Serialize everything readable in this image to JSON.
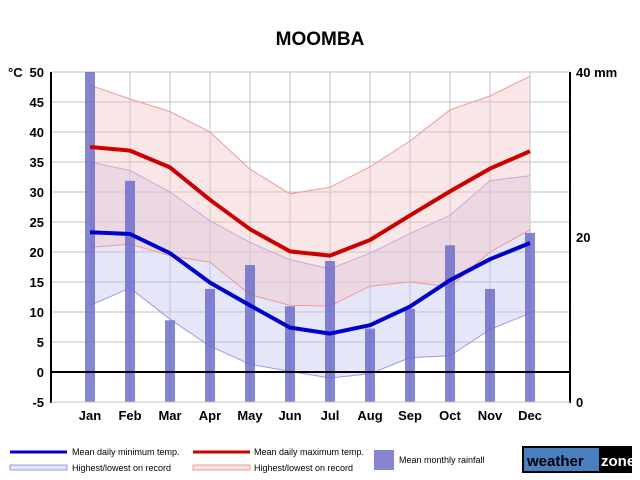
{
  "chart_data": {
    "type": "line",
    "title": "MOOMBA",
    "ylabel": "°C",
    "y2label": "mm",
    "ylim": [
      -5,
      50
    ],
    "y2lim": [
      0,
      40
    ],
    "yticks": [
      "-5",
      "0",
      "5",
      "10",
      "15",
      "20",
      "25",
      "30",
      "35",
      "40",
      "45",
      "50"
    ],
    "y2ticks": [
      "0",
      "20",
      "40 mm"
    ],
    "grid": true,
    "categories": [
      "Jan",
      "Feb",
      "Mar",
      "Apr",
      "May",
      "Jun",
      "Jul",
      "Aug",
      "Sep",
      "Oct",
      "Nov",
      "Dec"
    ],
    "series": [
      {
        "name": "Mean daily minimum temp.",
        "color": "#0000cc",
        "values": [
          23.3,
          23.0,
          19.8,
          14.9,
          11.1,
          7.4,
          6.4,
          7.8,
          10.9,
          15.3,
          18.8,
          21.5
        ]
      },
      {
        "name": "Mean daily maximum temp.",
        "color": "#cc0000",
        "values": [
          37.5,
          36.9,
          34.1,
          28.7,
          23.8,
          20.1,
          19.4,
          22.0,
          26.1,
          30.1,
          33.9,
          36.8
        ]
      },
      {
        "name": "Highest/lowest on record (min)",
        "color": "#9999ee",
        "high": [
          35.0,
          33.6,
          30.0,
          25.2,
          21.6,
          18.7,
          17.2,
          19.8,
          23.1,
          26.1,
          31.9,
          32.7
        ],
        "low": [
          11.1,
          14.0,
          8.8,
          4.3,
          1.3,
          0.1,
          -1.0,
          -0.3,
          2.4,
          2.7,
          7.1,
          9.8
        ]
      },
      {
        "name": "Highest/lowest on record (max)",
        "color": "#ee9999",
        "high": [
          47.8,
          45.5,
          43.4,
          40.0,
          33.8,
          29.7,
          30.8,
          34.2,
          38.5,
          43.7,
          46.0,
          49.3
        ],
        "low": [
          20.8,
          21.3,
          19.4,
          18.3,
          12.9,
          11.1,
          11.0,
          14.3,
          15.0,
          14.2,
          20.0,
          23.7
        ]
      },
      {
        "name": "Mean monthly rainfall",
        "color": "#8080cc",
        "axis": "y2",
        "values": [
          41.0,
          26.8,
          9.9,
          13.7,
          16.6,
          11.6,
          17.1,
          8.9,
          11.3,
          19.0,
          13.7,
          20.5
        ]
      }
    ],
    "legend": {
      "min": "Mean daily minimum temp.",
      "max": "Mean daily maximum temp.",
      "min_record": "Highest/lowest on record",
      "max_record": "Highest/lowest on record",
      "rain": "Mean monthly rainfall"
    },
    "logo": {
      "left": "weather",
      "right": "zone"
    }
  }
}
